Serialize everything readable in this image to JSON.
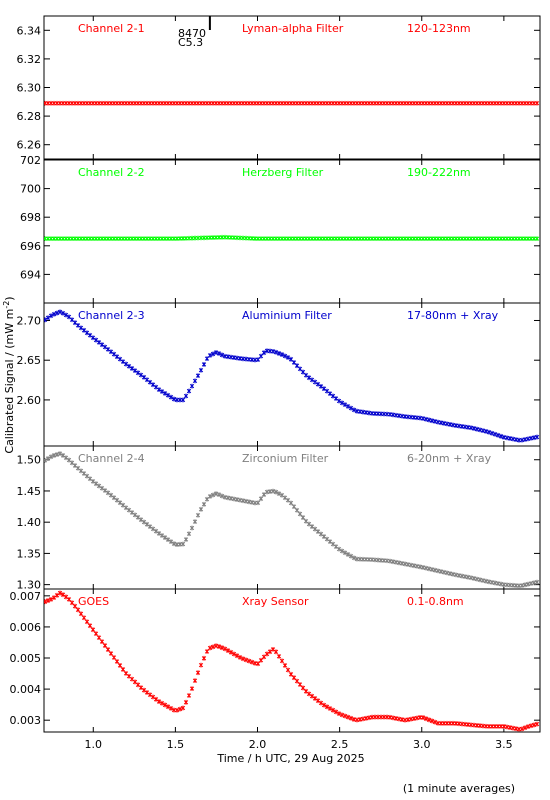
{
  "chart_data": {
    "type": "scatter",
    "xlabel": "Time / h UTC, 29 Aug 2025",
    "ylabel_main": "Calibrated Signal / (mW m",
    "ylabel_sup": "-2",
    "ylabel_close": ")",
    "note": "(1 minute averages)",
    "xlim": [
      0.7,
      3.72
    ],
    "xticks": [
      1.0,
      1.5,
      2.0,
      2.5,
      3.0,
      3.5
    ],
    "xtick_labels": [
      "1.0",
      "1.5",
      "2.0",
      "2.5",
      "3.0",
      "3.5"
    ],
    "event_marker": {
      "x": 1.71,
      "line1": "8470",
      "line2": "C5.3"
    },
    "panels": [
      {
        "channel": "Channel 2-1",
        "filter": "Lyman-alpha Filter",
        "band": "120-123nm",
        "color": "#ff0000",
        "ylim": [
          6.25,
          6.35
        ],
        "yticks": [
          6.26,
          6.28,
          6.3,
          6.32,
          6.34
        ],
        "ytick_labels": [
          "6.26",
          "6.28",
          "6.30",
          "6.32",
          "6.34"
        ],
        "x": [
          0.7,
          3.72
        ],
        "y": [
          6.289,
          6.289
        ]
      },
      {
        "channel": "Channel 2-2",
        "filter": "Herzberg Filter",
        "band": "190-222nm",
        "color": "#00ff00",
        "ylim": [
          692.0,
          702.0
        ],
        "yticks": [
          694,
          696,
          698,
          700,
          702
        ],
        "ytick_labels": [
          "694",
          "696",
          "698",
          "700",
          "702"
        ],
        "x": [
          0.7,
          1.0,
          1.5,
          1.8,
          2.0,
          2.5,
          3.0,
          3.5,
          3.72
        ],
        "y": [
          696.5,
          696.5,
          696.5,
          696.6,
          696.5,
          696.5,
          696.5,
          696.5,
          696.5
        ]
      },
      {
        "channel": "Channel 2-3",
        "filter": "Aluminium Filter",
        "band": "17-80nm + Xray",
        "color": "#0000cc",
        "ylim": [
          2.542,
          2.722
        ],
        "yticks": [
          2.6,
          2.65,
          2.7
        ],
        "ytick_labels": [
          "2.60",
          "2.65",
          "2.70"
        ],
        "x": [
          0.7,
          0.75,
          0.8,
          0.85,
          0.9,
          1.0,
          1.1,
          1.2,
          1.3,
          1.4,
          1.5,
          1.55,
          1.6,
          1.65,
          1.7,
          1.75,
          1.8,
          1.9,
          2.0,
          2.05,
          2.1,
          2.15,
          2.2,
          2.3,
          2.4,
          2.5,
          2.6,
          2.7,
          2.8,
          2.9,
          3.0,
          3.1,
          3.2,
          3.3,
          3.4,
          3.5,
          3.6,
          3.72
        ],
        "y": [
          2.7,
          2.707,
          2.711,
          2.705,
          2.695,
          2.678,
          2.662,
          2.645,
          2.63,
          2.613,
          2.6,
          2.6,
          2.617,
          2.635,
          2.655,
          2.66,
          2.655,
          2.652,
          2.65,
          2.662,
          2.661,
          2.657,
          2.652,
          2.63,
          2.615,
          2.598,
          2.586,
          2.583,
          2.582,
          2.579,
          2.577,
          2.572,
          2.568,
          2.565,
          2.56,
          2.553,
          2.549,
          2.554
        ]
      },
      {
        "channel": "Channel 2-4",
        "filter": "Zirconium Filter",
        "band": "6-20nm + Xray",
        "color": "#7f7f7f",
        "ylim": [
          1.293,
          1.522
        ],
        "yticks": [
          1.3,
          1.35,
          1.4,
          1.45,
          1.5
        ],
        "ytick_labels": [
          "1.30",
          "1.35",
          "1.40",
          "1.45",
          "1.50"
        ],
        "x": [
          0.7,
          0.75,
          0.8,
          0.85,
          0.9,
          1.0,
          1.1,
          1.2,
          1.3,
          1.4,
          1.5,
          1.55,
          1.6,
          1.65,
          1.7,
          1.75,
          1.8,
          1.9,
          2.0,
          2.05,
          2.1,
          2.15,
          2.2,
          2.3,
          2.4,
          2.5,
          2.6,
          2.7,
          2.8,
          2.9,
          3.0,
          3.1,
          3.2,
          3.3,
          3.4,
          3.5,
          3.6,
          3.72
        ],
        "y": [
          1.498,
          1.506,
          1.51,
          1.5,
          1.488,
          1.465,
          1.445,
          1.423,
          1.402,
          1.382,
          1.364,
          1.365,
          1.39,
          1.418,
          1.44,
          1.446,
          1.44,
          1.435,
          1.43,
          1.448,
          1.45,
          1.443,
          1.432,
          1.4,
          1.378,
          1.356,
          1.341,
          1.34,
          1.338,
          1.333,
          1.328,
          1.322,
          1.316,
          1.311,
          1.305,
          1.3,
          1.298,
          1.305
        ]
      },
      {
        "channel": "GOES",
        "filter": "Xray Sensor",
        "band": "0.1-0.8nm",
        "color": "#ff0000",
        "ylim": [
          0.00262,
          0.00722
        ],
        "yticks": [
          0.003,
          0.004,
          0.005,
          0.006,
          0.007
        ],
        "ytick_labels": [
          "0.003",
          "0.004",
          "0.005",
          "0.006",
          "0.007"
        ],
        "x": [
          0.7,
          0.75,
          0.8,
          0.85,
          0.9,
          1.0,
          1.1,
          1.2,
          1.3,
          1.4,
          1.5,
          1.55,
          1.6,
          1.65,
          1.7,
          1.75,
          1.8,
          1.9,
          2.0,
          2.05,
          2.1,
          2.15,
          2.2,
          2.3,
          2.4,
          2.5,
          2.6,
          2.7,
          2.8,
          2.9,
          3.0,
          3.1,
          3.2,
          3.3,
          3.4,
          3.5,
          3.6,
          3.65,
          3.72
        ],
        "y": [
          0.0068,
          0.0069,
          0.0071,
          0.0069,
          0.0066,
          0.0059,
          0.0052,
          0.0045,
          0.004,
          0.0036,
          0.0033,
          0.0034,
          0.004,
          0.0047,
          0.0053,
          0.0054,
          0.0053,
          0.005,
          0.0048,
          0.0051,
          0.0053,
          0.0049,
          0.0045,
          0.0039,
          0.0035,
          0.0032,
          0.003,
          0.0031,
          0.0031,
          0.003,
          0.0031,
          0.0029,
          0.0029,
          0.00285,
          0.0028,
          0.0028,
          0.0027,
          0.0028,
          0.0029
        ]
      }
    ]
  }
}
